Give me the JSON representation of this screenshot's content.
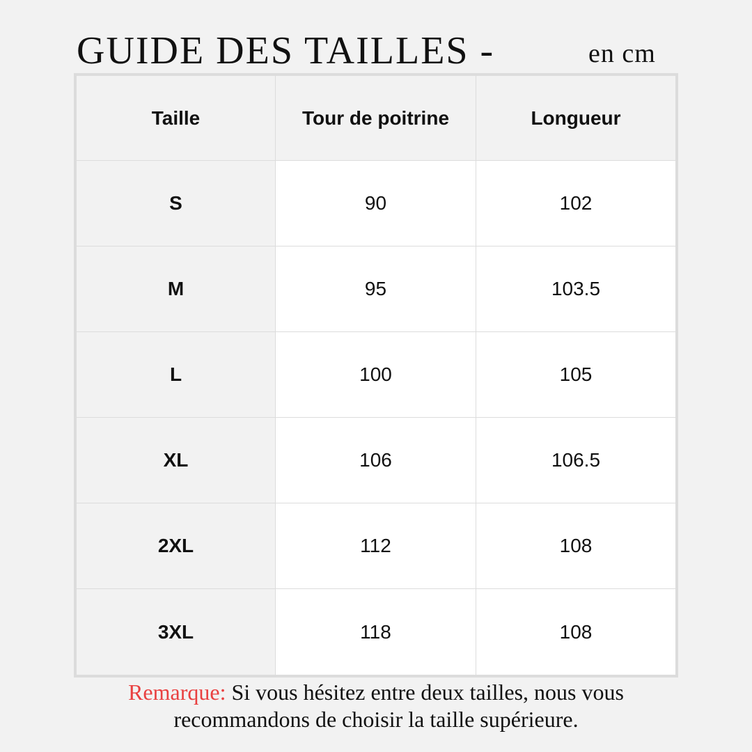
{
  "title": "GUIDE DES TAILLES -",
  "unit": "en cm",
  "table": {
    "headers": [
      "Taille",
      "Tour de poitrine",
      "Longueur"
    ],
    "rows": [
      [
        "S",
        "90",
        "102"
      ],
      [
        "M",
        "95",
        "103.5"
      ],
      [
        "L",
        "100",
        "105"
      ],
      [
        "XL",
        "106",
        "106.5"
      ],
      [
        "2XL",
        "112",
        "108"
      ],
      [
        "3XL",
        "118",
        "108"
      ]
    ]
  },
  "note": {
    "label": "Remarque:",
    "line1": "Si vous hésitez entre deux tailles, nous vous",
    "line2": "recommandons de choisir la taille supérieure."
  },
  "colors": {
    "accent": "#e94040",
    "background": "#f2f2f2"
  }
}
